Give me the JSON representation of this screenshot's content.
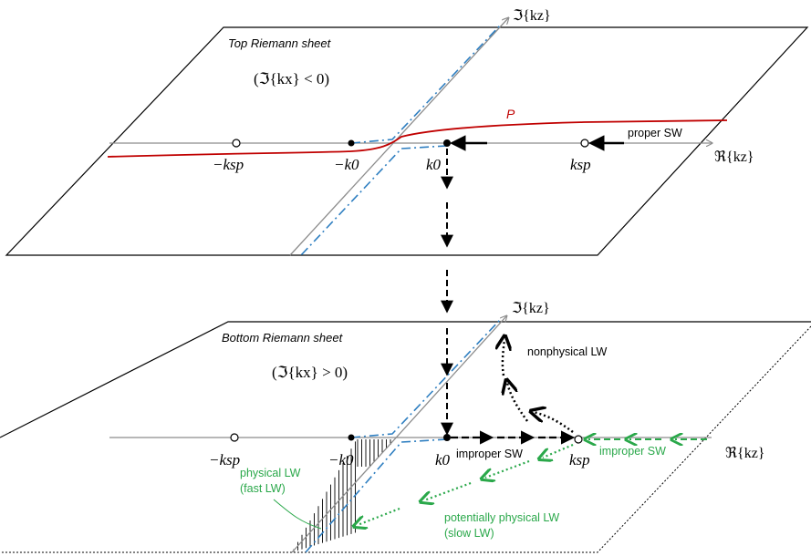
{
  "top_sheet": {
    "title": "Top Riemann sheet",
    "condition": "(ℑ{kx} < 0)",
    "curve_label": "P",
    "proper_label": "proper SW",
    "neg_ksp": "−ksp",
    "neg_k0": "−k0",
    "k0": "k0",
    "ksp": "ksp",
    "axis_imag": "ℑ{kz}",
    "axis_real": "ℜ{kz}"
  },
  "bottom_sheet": {
    "title": "Bottom Riemann sheet",
    "condition": "(ℑ{kx} > 0)",
    "nonphysical_label": "nonphysical LW",
    "improper_label_black": "improper SW",
    "improper_label_green": "improper SW",
    "physical_label_1": "physical LW",
    "physical_label_2": "(fast LW)",
    "potential_label_1": "potentially physical LW",
    "potential_label_2": "(slow LW)",
    "neg_ksp": "−ksp",
    "neg_k0": "−k0",
    "k0": "k0",
    "ksp": "ksp",
    "axis_imag": "ℑ{kz}",
    "axis_real": "ℜ{kz}"
  },
  "colors": {
    "sheet_edge": "#000000",
    "axis": "#8c8c8c",
    "curve_p": "#c00000",
    "branch_cut": "#2f7fc1",
    "green": "#2aa84a",
    "arrow": "#000000"
  }
}
